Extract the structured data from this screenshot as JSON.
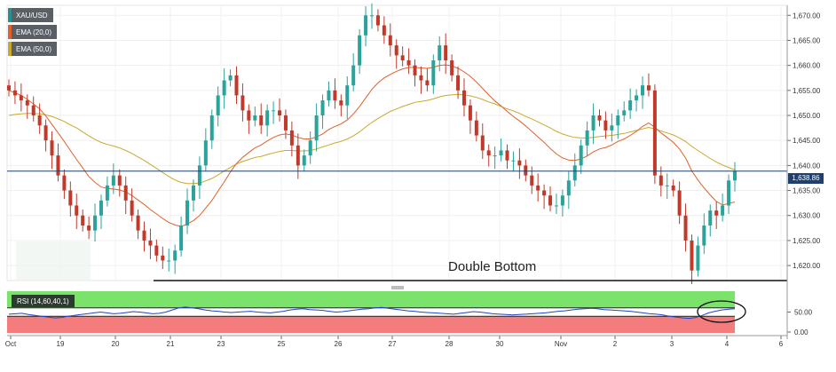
{
  "chart_data": {
    "type": "candlestick",
    "symbol": "XAU/USD",
    "legend": [
      {
        "label": "XAU/USD",
        "color": "#2a8f8f"
      },
      {
        "label": "EMA (20,0)",
        "color": "#e0612b"
      },
      {
        "label": "EMA (50,0)",
        "color": "#c9a92d"
      }
    ],
    "current_price": "1,638.86",
    "annotation": "Double Bottom",
    "y_ticks": [
      "1,670.00",
      "1,665.00",
      "1,660.00",
      "1,655.00",
      "1,650.00",
      "1,645.00",
      "1,640.00",
      "1,635.00",
      "1,630.00",
      "1,625.00",
      "1,620.00"
    ],
    "ylim": [
      1617,
      1672
    ],
    "x_ticks": [
      "Oct",
      "19",
      "20",
      "21",
      "23",
      "25",
      "26",
      "27",
      "28",
      "30",
      "Nov",
      "2",
      "3",
      "4",
      "6"
    ],
    "close_series": [
      1655,
      1654,
      1653,
      1652,
      1650,
      1648,
      1645,
      1642,
      1638,
      1635,
      1632,
      1630,
      1628,
      1627,
      1630,
      1633,
      1636,
      1638,
      1636,
      1633,
      1630,
      1627,
      1625,
      1624,
      1622,
      1621,
      1621,
      1623,
      1628,
      1633,
      1636,
      1640,
      1645,
      1650,
      1654,
      1657,
      1658,
      1654,
      1651,
      1649,
      1650,
      1648,
      1651,
      1651,
      1650,
      1647,
      1644,
      1640,
      1642,
      1645,
      1650,
      1653,
      1655,
      1653,
      1652,
      1656,
      1660,
      1666,
      1670,
      1670,
      1668,
      1666,
      1664,
      1662,
      1661,
      1660,
      1658,
      1657,
      1656,
      1661,
      1664,
      1661,
      1658,
      1655,
      1652,
      1649,
      1646,
      1643,
      1642,
      1642,
      1643,
      1641,
      1641,
      1640,
      1638,
      1636,
      1635,
      1634,
      1632,
      1632,
      1634,
      1637,
      1640,
      1644,
      1647,
      1650,
      1649,
      1647,
      1648,
      1650,
      1651,
      1653,
      1654,
      1656,
      1655,
      1638,
      1636,
      1636,
      1635,
      1630,
      1625,
      1619,
      1624,
      1628,
      1631,
      1630,
      1632,
      1637,
      1638.86
    ],
    "ema20": [
      1655,
      1654.5,
      1654,
      1653.2,
      1652.3,
      1651.3,
      1649.9,
      1648.2,
      1646.5,
      1644.8,
      1643,
      1641.2,
      1639.5,
      1637.8,
      1636.6,
      1635.7,
      1635.4,
      1635.3,
      1635.1,
      1634.7,
      1634,
      1633.1,
      1632.2,
      1631.2,
      1630.3,
      1629.4,
      1628.6,
      1628.1,
      1627.8,
      1628.3,
      1629,
      1630,
      1631.5,
      1633,
      1634.9,
      1636.7,
      1638.7,
      1640.4,
      1641.6,
      1642.6,
      1643.5,
      1644.1,
      1644.9,
      1645.6,
      1646.1,
      1646.3,
      1646.1,
      1645.6,
      1645.3,
      1645.3,
      1645.7,
      1646.3,
      1647.2,
      1647.8,
      1648.3,
      1649.1,
      1650.3,
      1651.8,
      1653.5,
      1655.2,
      1656.5,
      1657.5,
      1658.2,
      1658.8,
      1659.3,
      1659.6,
      1659.6,
      1659.5,
      1659.4,
      1659.6,
      1660,
      1660.1,
      1659.9,
      1659.4,
      1658.7,
      1657.8,
      1656.7,
      1655.4,
      1654.1,
      1652.9,
      1651.9,
      1650.8,
      1649.8,
      1648.9,
      1647.9,
      1646.8,
      1645.7,
      1644.6,
      1643.4,
      1642.3,
      1641.5,
      1641.1,
      1641,
      1641.3,
      1641.9,
      1642.7,
      1643.3,
      1643.6,
      1644.1,
      1644.8,
      1645.3,
      1646,
      1646.8,
      1647.8,
      1648.5,
      1647.6,
      1646.5,
      1645.6,
      1644.6,
      1643.3,
      1641.5,
      1638.9,
      1637.1,
      1635.5,
      1634.1,
      1632.8,
      1632.1,
      1632.4,
      1632.7
    ],
    "ema50": [
      1650,
      1650.2,
      1650.3,
      1650.4,
      1650.4,
      1650.3,
      1650.1,
      1649.8,
      1649.3,
      1648.8,
      1648.1,
      1647.5,
      1646.7,
      1645.9,
      1645.2,
      1644.6,
      1644.2,
      1643.9,
      1643.5,
      1643,
      1642.4,
      1641.7,
      1641,
      1640.2,
      1639.4,
      1638.6,
      1637.8,
      1637.1,
      1636.6,
      1636.4,
      1636.4,
      1636.5,
      1636.9,
      1637.4,
      1638.1,
      1638.9,
      1639.6,
      1640.3,
      1640.8,
      1641.2,
      1641.6,
      1641.8,
      1642.2,
      1642.5,
      1642.8,
      1643,
      1643,
      1642.9,
      1642.9,
      1643,
      1643.3,
      1643.7,
      1644.1,
      1644.5,
      1644.8,
      1645.3,
      1645.9,
      1646.7,
      1647.7,
      1648.6,
      1649.4,
      1650.1,
      1650.8,
      1651.3,
      1651.8,
      1652.2,
      1652.6,
      1652.8,
      1653,
      1653.3,
      1653.7,
      1654,
      1654.1,
      1654.2,
      1654.1,
      1653.9,
      1653.6,
      1653.2,
      1652.7,
      1652.3,
      1651.8,
      1651.3,
      1650.9,
      1650.4,
      1649.8,
      1649.3,
      1648.7,
      1648.1,
      1647.5,
      1646.8,
      1646.3,
      1645.9,
      1645.6,
      1645.5,
      1645.5,
      1645.6,
      1645.8,
      1645.9,
      1646,
      1646.2,
      1646.4,
      1646.7,
      1647,
      1647.3,
      1647.6,
      1647.3,
      1646.9,
      1646.5,
      1646.1,
      1645.5,
      1644.8,
      1643.8,
      1643,
      1642.2,
      1641.4,
      1640.7,
      1640.1,
      1639.6,
      1639.1
    ],
    "rsi": {
      "label": "RSI (14,60,40,1)",
      "y_ticks": [
        "50.00",
        "0.00"
      ],
      "values": [
        45,
        46,
        47,
        44,
        42,
        40,
        38,
        36,
        37,
        40,
        42,
        44,
        46,
        48,
        50,
        48,
        46,
        47,
        49,
        51,
        50,
        48,
        46,
        47,
        50,
        55,
        60,
        62,
        60,
        58,
        55,
        53,
        52,
        50,
        49,
        50,
        51,
        52,
        50,
        49,
        48,
        50,
        52,
        55,
        57,
        58,
        56,
        55,
        54,
        52,
        50,
        51,
        53,
        55,
        57,
        58,
        60,
        61,
        59,
        57,
        55,
        53,
        52,
        50,
        49,
        48,
        47,
        46,
        45,
        47,
        49,
        51,
        50,
        48,
        46,
        45,
        44,
        43,
        44,
        45,
        46,
        47,
        48,
        50,
        52,
        53,
        55,
        57,
        58,
        59,
        58,
        56,
        55,
        54,
        53,
        52,
        50,
        48,
        46,
        45,
        43,
        40,
        38,
        36,
        35,
        37,
        42,
        48,
        52,
        55,
        57,
        58
      ]
    }
  }
}
